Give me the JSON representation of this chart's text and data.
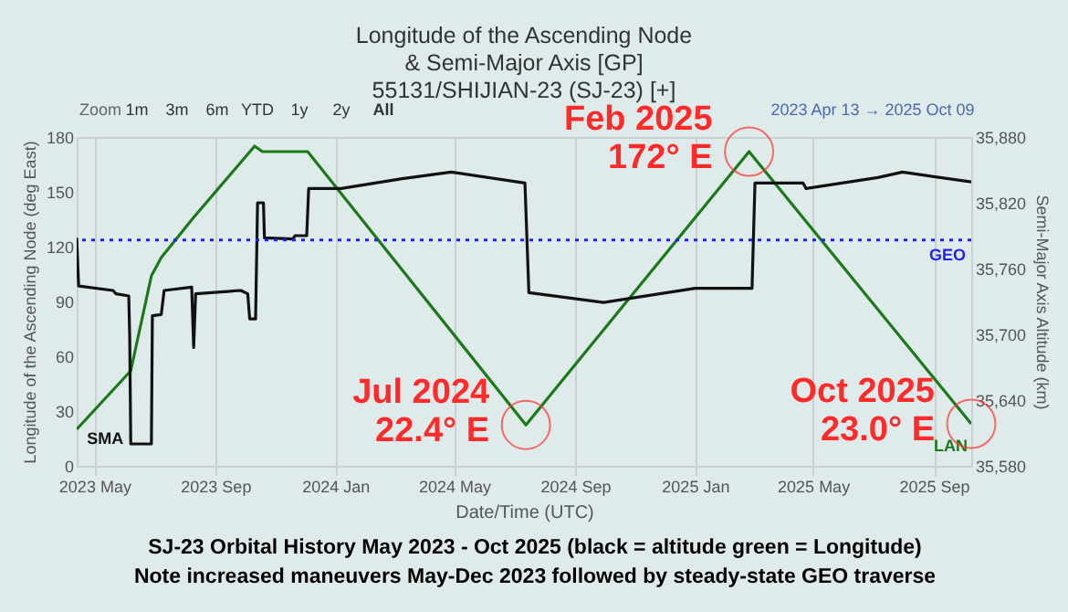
{
  "chart_data": {
    "type": "line",
    "title": "Longitude of the Ascending Node\n& Semi-Major Axis [GP]\n55131/SHIJIAN-23 (SJ-23) [+]",
    "xlabel": "Date/Time (UTC)",
    "ylabel": "Longitude of the Ascending Node (deg East)",
    "y2label": "Semi-Major Axis Altitude (km)",
    "xlim": [
      "2023-04-13",
      "2025-10-09"
    ],
    "xticks": [
      {
        "value": "2023-05-01",
        "label": "2023 May"
      },
      {
        "value": "2023-09-01",
        "label": "2023 Sep"
      },
      {
        "value": "2024-01-01",
        "label": "2024 Jan"
      },
      {
        "value": "2024-05-01",
        "label": "2024 May"
      },
      {
        "value": "2024-09-01",
        "label": "2024 Sep"
      },
      {
        "value": "2025-01-01",
        "label": "2025 Jan"
      },
      {
        "value": "2025-05-01",
        "label": "2025 May"
      },
      {
        "value": "2025-09-01",
        "label": "2025 Sep"
      }
    ],
    "ylim": [
      0,
      180
    ],
    "yticks": [
      0,
      30,
      60,
      90,
      120,
      150,
      180
    ],
    "y2lim": [
      35580,
      35880
    ],
    "y2ticks": [
      {
        "value": 35580,
        "label": "35,580"
      },
      {
        "value": 35640,
        "label": "35,640"
      },
      {
        "value": 35700,
        "label": "35,700"
      },
      {
        "value": 35760,
        "label": "35,760"
      },
      {
        "value": 35820,
        "label": "35,820"
      },
      {
        "value": 35880,
        "label": "35,880"
      }
    ],
    "grid": "x",
    "legend": false,
    "marker": "none",
    "line_style": "solid",
    "series": [
      {
        "name": "SMA",
        "color": "#111111",
        "axis": "y2",
        "x": [
          "2023-04-13",
          "2023-04-15",
          "2023-05-20",
          "2023-05-23",
          "2023-06-05",
          "2023-06-06",
          "2023-06-07",
          "2023-06-28",
          "2023-06-29",
          "2023-07-08",
          "2023-07-11",
          "2023-08-08",
          "2023-08-10",
          "2023-08-12",
          "2023-09-27",
          "2023-10-04",
          "2023-10-06",
          "2023-10-12",
          "2023-10-14",
          "2023-10-20",
          "2023-10-21",
          "2023-11-19",
          "2023-11-21",
          "2023-12-03",
          "2023-12-05",
          "2024-01-07",
          "2024-03-09",
          "2024-04-28",
          "2024-07-12",
          "2024-07-16",
          "2024-09-30",
          "2025-01-01",
          "2025-02-28",
          "2025-03-03",
          "2025-04-21",
          "2025-04-24",
          "2025-07-06",
          "2025-07-31",
          "2025-10-09"
        ],
        "values": [
          35788,
          35744,
          35740,
          35737,
          35735,
          35695,
          35600,
          35600,
          35717,
          35718,
          35740,
          35743,
          35688,
          35737,
          35740,
          35737,
          35714,
          35714,
          35820,
          35820,
          35788,
          35787,
          35790,
          35790,
          35833,
          35833,
          35842,
          35848,
          35838,
          35738,
          35729,
          35742,
          35742,
          35838,
          35838,
          35833,
          35843,
          35848,
          35839
        ]
      },
      {
        "name": "LAN",
        "color": "#1a7a1a",
        "x": [
          "2023-04-13",
          "2023-06-07",
          "2023-06-28",
          "2023-07-08",
          "2023-08-10",
          "2023-10-11",
          "2023-10-19",
          "2023-12-04",
          "2024-07-13",
          "2025-02-25",
          "2025-10-09"
        ],
        "values": [
          20,
          52,
          104,
          114,
          136,
          175,
          172,
          172,
          22.4,
          172,
          23.0
        ]
      }
    ],
    "ref_lines": [
      {
        "axis": "y2",
        "value": 35786,
        "label": "GEO",
        "color": "#2222ee",
        "line_style": "dotted"
      }
    ],
    "annotations": [
      "Zoom",
      "1m",
      "3m",
      "6m",
      "YTD",
      "1y",
      "2y",
      "All",
      "2023 Apr 13 → 2025 Oct 09",
      "SJ-23 Orbital History May 2023 - Oct 2025 (black = altitude  green = Longitude)",
      "Note increased maneuvers May-Dec 2023 followed by steady-state GEO traverse",
      {
        "text": "Jul 2024\n22.4° E",
        "x": "2024-07-13",
        "y": 22.4
      },
      {
        "text": "Feb 2025\n172° E",
        "x": "2025-02-25",
        "y": 172
      },
      {
        "text": "Oct 2025\n23.0° E",
        "x": "2025-10-09",
        "y": 23.0
      }
    ]
  }
}
